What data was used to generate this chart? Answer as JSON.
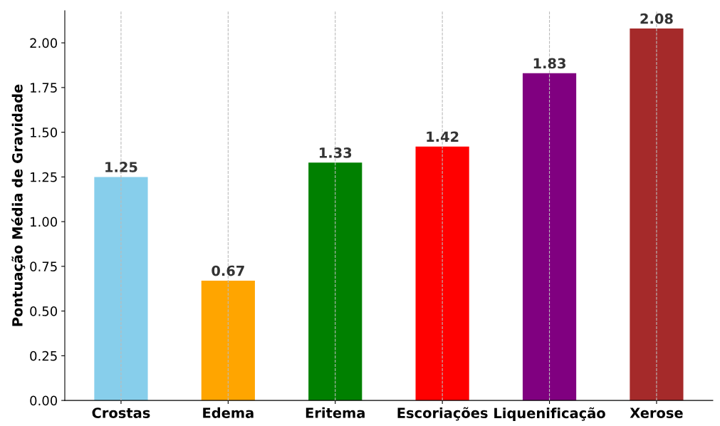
{
  "chart_data": {
    "type": "bar",
    "ylabel": "Pontuação Média de Gravidade",
    "categories": [
      "Crostas",
      "Edema",
      "Eritema",
      "Escoriações",
      "Liquenificação",
      "Xerose"
    ],
    "values": [
      1.25,
      0.67,
      1.33,
      1.42,
      1.83,
      2.08
    ],
    "colors": [
      "#87ceeb",
      "#ffa500",
      "#008000",
      "#ff0000",
      "#800080",
      "#a52a2a"
    ],
    "ylim": [
      0,
      2.18
    ],
    "yticks": [
      {
        "value": 0,
        "label": "0.00"
      },
      {
        "value": 0.25,
        "label": "0.25"
      },
      {
        "value": 0.5,
        "label": "0.50"
      },
      {
        "value": 0.75,
        "label": "0.75"
      },
      {
        "value": 1.0,
        "label": "1.00"
      },
      {
        "value": 1.25,
        "label": "1.25"
      },
      {
        "value": 1.5,
        "label": "1.50"
      },
      {
        "value": 1.75,
        "label": "1.75"
      },
      {
        "value": 2.0,
        "label": "2.00"
      }
    ],
    "grid": "x",
    "data_labels": true,
    "legend": false
  }
}
